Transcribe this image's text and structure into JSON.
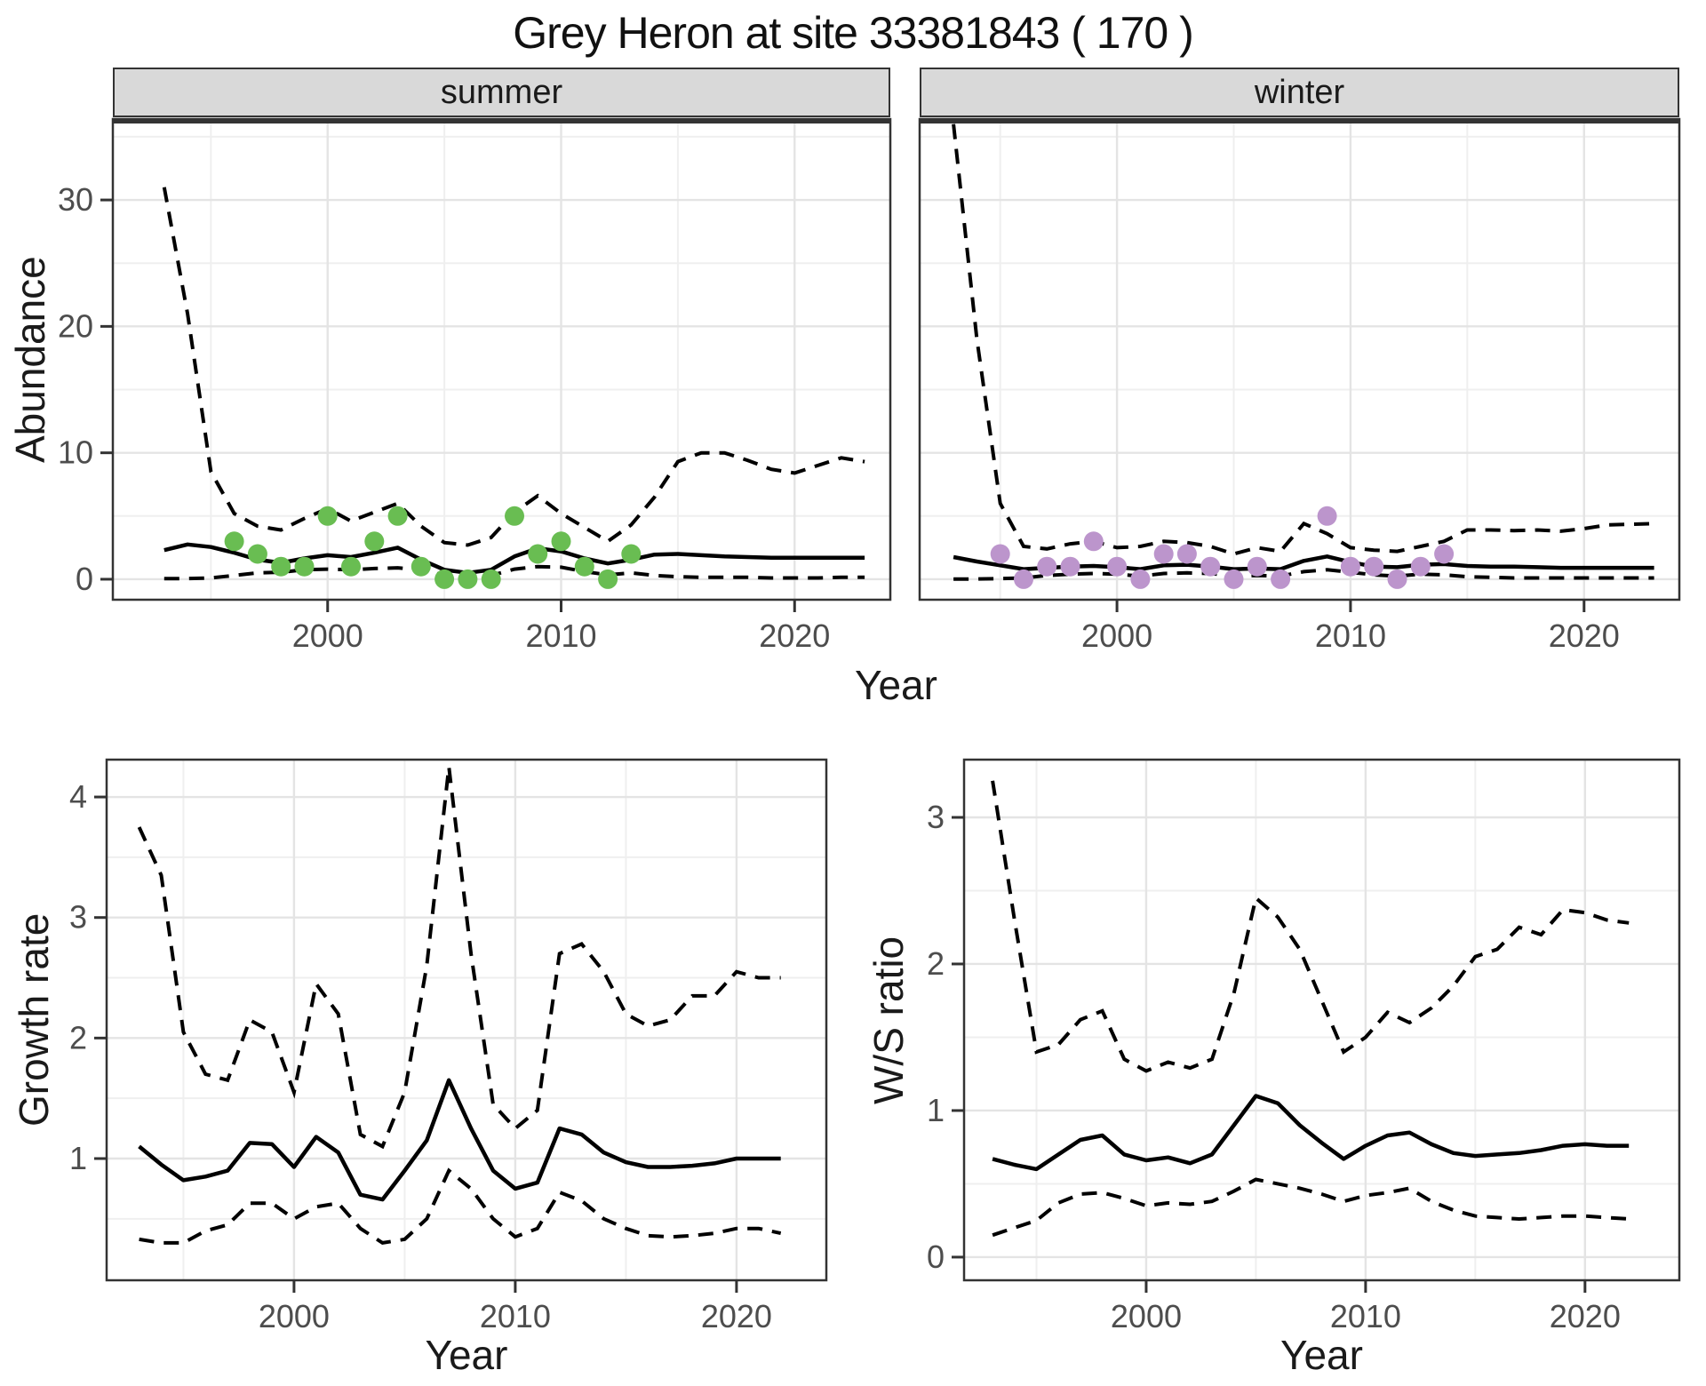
{
  "title": "Grey Heron at site 33381843 ( 170 )",
  "top_row": {
    "facets": [
      {
        "label": "summer"
      },
      {
        "label": "winter"
      }
    ],
    "ylabel": "Abundance",
    "xlabel": "Year"
  },
  "bottom_row": {
    "left_ylabel": "Growth rate",
    "right_ylabel": "W/S ratio",
    "xlabel": "Year"
  },
  "colors": {
    "summer_point": "#69bd52",
    "winter_point": "#bc95cc",
    "line": "#000000",
    "grid_major": "#e4e4e4",
    "grid_minor": "#efefef",
    "panel_border": "#333333",
    "strip_bg": "#d9d9d9",
    "tick_label": "#4d4d4d"
  },
  "chart_data": [
    {
      "id": "abundance_summer",
      "type": "line+scatter",
      "facet": "summer",
      "ylabel": "Abundance",
      "xlabel": "Year",
      "xlim": [
        1990.8,
        2024.1
      ],
      "ylim": [
        -1.62,
        36.4
      ],
      "x_ticks": [
        2000,
        2010,
        2020
      ],
      "x_tick_labels": [
        "2000",
        "2010",
        "2020"
      ],
      "x_minor": [
        1995,
        2005,
        2015
      ],
      "y_ticks": [
        0,
        10,
        20,
        30
      ],
      "y_tick_labels": [
        "0",
        "10",
        "20",
        "30"
      ],
      "y_minor": [
        5,
        15,
        25,
        35
      ],
      "show_y_labels": true,
      "lines": {
        "x": [
          1993,
          1994,
          1995,
          1996,
          1997,
          1998,
          1999,
          2000,
          2001,
          2002,
          2003,
          2004,
          2005,
          2006,
          2007,
          2008,
          2009,
          2010,
          2011,
          2012,
          2013,
          2014,
          2015,
          2016,
          2017,
          2018,
          2019,
          2020,
          2021,
          2022,
          2023
        ],
        "median": [
          2.3,
          2.75,
          2.55,
          2.1,
          1.55,
          1.3,
          1.65,
          1.9,
          1.75,
          2.1,
          2.5,
          1.55,
          0.75,
          0.5,
          0.75,
          1.8,
          2.45,
          2.2,
          1.65,
          1.25,
          1.55,
          1.95,
          2.0,
          1.9,
          1.8,
          1.75,
          1.7,
          1.7,
          1.7,
          1.7,
          1.7
        ],
        "upper": [
          31,
          21,
          8.5,
          5.2,
          4.2,
          3.9,
          4.8,
          5.6,
          4.6,
          5.3,
          6.0,
          4.2,
          2.9,
          2.7,
          3.3,
          5.3,
          6.6,
          5.2,
          4.1,
          3.0,
          4.3,
          6.5,
          9.3,
          10.0,
          10.0,
          9.4,
          8.7,
          8.4,
          9.0,
          9.6,
          9.3
        ],
        "lower": [
          0.05,
          0.05,
          0.1,
          0.3,
          0.5,
          0.55,
          0.75,
          0.8,
          0.75,
          0.85,
          0.9,
          0.75,
          0.3,
          0.2,
          0.3,
          0.8,
          1.0,
          0.95,
          0.6,
          0.35,
          0.5,
          0.3,
          0.2,
          0.15,
          0.15,
          0.15,
          0.1,
          0.1,
          0.1,
          0.15,
          0.15
        ]
      },
      "points": {
        "x": [
          1996,
          1997,
          1998,
          1999,
          2000,
          2001,
          2002,
          2003,
          2004,
          2005,
          2006,
          2007,
          2008,
          2009,
          2010,
          2011,
          2012,
          2013
        ],
        "y": [
          3,
          2,
          1,
          1,
          5,
          1,
          3,
          5,
          1,
          0,
          0,
          0,
          5,
          2,
          3,
          1,
          0,
          2
        ],
        "color": "#69bd52"
      }
    },
    {
      "id": "abundance_winter",
      "type": "line+scatter",
      "facet": "winter",
      "ylabel": "Abundance",
      "xlabel": "Year",
      "xlim": [
        1991.55,
        2024.08
      ],
      "ylim": [
        -1.62,
        36.4
      ],
      "x_ticks": [
        2000,
        2010,
        2020
      ],
      "x_tick_labels": [
        "2000",
        "2010",
        "2020"
      ],
      "x_minor": [
        1995,
        2005,
        2015
      ],
      "y_ticks": [
        0,
        10,
        20,
        30
      ],
      "y_tick_labels": [
        "0",
        "10",
        "20",
        "30"
      ],
      "y_minor": [
        5,
        15,
        25,
        35
      ],
      "show_y_labels": false,
      "lines": {
        "x": [
          1993,
          1994,
          1995,
          1996,
          1997,
          1998,
          1999,
          2000,
          2001,
          2002,
          2003,
          2004,
          2005,
          2006,
          2007,
          2008,
          2009,
          2010,
          2011,
          2012,
          2013,
          2014,
          2015,
          2016,
          2017,
          2018,
          2019,
          2020,
          2021,
          2022,
          2023
        ],
        "median": [
          1.75,
          1.4,
          1.1,
          0.8,
          0.9,
          1.0,
          1.05,
          0.95,
          0.8,
          1.1,
          1.15,
          1.0,
          0.8,
          0.85,
          0.8,
          1.45,
          1.8,
          1.35,
          1.0,
          0.95,
          1.15,
          1.2,
          1.05,
          1.0,
          1.0,
          0.95,
          0.9,
          0.9,
          0.9,
          0.9,
          0.9
        ],
        "upper": [
          36,
          19,
          6,
          2.6,
          2.4,
          2.8,
          3.0,
          2.5,
          2.6,
          3.0,
          2.9,
          2.6,
          2.0,
          2.5,
          2.2,
          4.4,
          3.6,
          2.5,
          2.3,
          2.2,
          2.6,
          3.0,
          3.9,
          3.9,
          3.85,
          3.9,
          3.8,
          4.0,
          4.3,
          4.35,
          4.4
        ],
        "lower": [
          0.02,
          0.02,
          0.05,
          0.1,
          0.3,
          0.4,
          0.45,
          0.4,
          0.25,
          0.45,
          0.5,
          0.45,
          0.25,
          0.3,
          0.25,
          0.6,
          0.75,
          0.55,
          0.35,
          0.25,
          0.4,
          0.35,
          0.2,
          0.15,
          0.1,
          0.1,
          0.1,
          0.1,
          0.1,
          0.1,
          0.1
        ]
      },
      "points": {
        "x": [
          1995,
          1996,
          1997,
          1998,
          1999,
          2000,
          2001,
          2002,
          2003,
          2004,
          2005,
          2006,
          2007,
          2009,
          2010,
          2011,
          2012,
          2013,
          2014
        ],
        "y": [
          2,
          0,
          1,
          1,
          3,
          1,
          0,
          2,
          2,
          1,
          0,
          1,
          0,
          5,
          1,
          1,
          0,
          1,
          2
        ],
        "color": "#bc95cc"
      }
    },
    {
      "id": "growth",
      "type": "line",
      "ylabel": "Growth rate",
      "xlabel": "Year",
      "xlim": [
        1991.53,
        2024.06
      ],
      "ylim": [
        -0.01,
        4.31
      ],
      "x_ticks": [
        2000,
        2010,
        2020
      ],
      "x_tick_labels": [
        "2000",
        "2010",
        "2020"
      ],
      "x_minor": [
        1995,
        2005,
        2015
      ],
      "y_ticks": [
        1,
        2,
        3,
        4
      ],
      "y_tick_labels": [
        "1",
        "2",
        "3",
        "4"
      ],
      "y_minor": [
        0.5,
        1.5,
        2.5,
        3.5
      ],
      "show_y_labels": true,
      "lines": {
        "x": [
          1993,
          1994,
          1995,
          1996,
          1997,
          1998,
          1999,
          2000,
          2001,
          2002,
          2003,
          2004,
          2005,
          2006,
          2007,
          2008,
          2009,
          2010,
          2011,
          2012,
          2013,
          2014,
          2015,
          2016,
          2017,
          2018,
          2019,
          2020,
          2021,
          2022
        ],
        "median": [
          1.1,
          0.95,
          0.82,
          0.85,
          0.9,
          1.13,
          1.12,
          0.93,
          1.18,
          1.05,
          0.7,
          0.66,
          0.9,
          1.15,
          1.65,
          1.25,
          0.9,
          0.75,
          0.8,
          1.25,
          1.2,
          1.05,
          0.97,
          0.93,
          0.93,
          0.94,
          0.96,
          1.0,
          1.0,
          1.0
        ],
        "upper": [
          3.75,
          3.35,
          2.05,
          1.7,
          1.65,
          2.15,
          2.05,
          1.55,
          2.45,
          2.2,
          1.2,
          1.1,
          1.55,
          2.6,
          4.25,
          2.7,
          1.45,
          1.25,
          1.4,
          2.7,
          2.78,
          2.55,
          2.2,
          2.1,
          2.15,
          2.35,
          2.35,
          2.55,
          2.5,
          2.5
        ],
        "lower": [
          0.33,
          0.3,
          0.3,
          0.4,
          0.45,
          0.63,
          0.63,
          0.5,
          0.6,
          0.63,
          0.42,
          0.3,
          0.33,
          0.5,
          0.9,
          0.75,
          0.5,
          0.35,
          0.42,
          0.72,
          0.65,
          0.5,
          0.42,
          0.36,
          0.35,
          0.36,
          0.38,
          0.42,
          0.42,
          0.38
        ]
      }
    },
    {
      "id": "ws_ratio",
      "type": "line",
      "ylabel": "W/S ratio",
      "xlabel": "Year",
      "xlim": [
        1991.7,
        2024.3
      ],
      "ylim": [
        -0.158,
        3.394
      ],
      "x_ticks": [
        2000,
        2010,
        2020
      ],
      "x_tick_labels": [
        "2000",
        "2010",
        "2020"
      ],
      "x_minor": [
        1995,
        2005,
        2015
      ],
      "y_ticks": [
        0,
        1,
        2,
        3
      ],
      "y_tick_labels": [
        "0",
        "1",
        "2",
        "3"
      ],
      "y_minor": [
        0.5,
        1.5,
        2.5
      ],
      "show_y_labels": true,
      "lines": {
        "x": [
          1993,
          1994,
          1995,
          1996,
          1997,
          1998,
          1999,
          2000,
          2001,
          2002,
          2003,
          2004,
          2005,
          2006,
          2007,
          2008,
          2009,
          2010,
          2011,
          2012,
          2013,
          2014,
          2015,
          2016,
          2017,
          2018,
          2019,
          2020,
          2021,
          2022
        ],
        "median": [
          0.67,
          0.63,
          0.6,
          0.7,
          0.8,
          0.83,
          0.7,
          0.66,
          0.68,
          0.64,
          0.7,
          0.9,
          1.1,
          1.05,
          0.9,
          0.78,
          0.67,
          0.76,
          0.83,
          0.85,
          0.77,
          0.71,
          0.69,
          0.7,
          0.71,
          0.73,
          0.76,
          0.77,
          0.76,
          0.76
        ],
        "upper": [
          3.25,
          2.3,
          1.4,
          1.45,
          1.62,
          1.68,
          1.35,
          1.27,
          1.33,
          1.29,
          1.35,
          1.8,
          2.45,
          2.32,
          2.1,
          1.75,
          1.4,
          1.5,
          1.67,
          1.6,
          1.7,
          1.85,
          2.05,
          2.1,
          2.25,
          2.2,
          2.37,
          2.35,
          2.3,
          2.28
        ],
        "lower": [
          0.15,
          0.2,
          0.25,
          0.37,
          0.43,
          0.44,
          0.4,
          0.35,
          0.37,
          0.36,
          0.38,
          0.45,
          0.53,
          0.5,
          0.47,
          0.43,
          0.38,
          0.42,
          0.44,
          0.47,
          0.38,
          0.32,
          0.28,
          0.27,
          0.26,
          0.27,
          0.28,
          0.28,
          0.27,
          0.26
        ]
      }
    }
  ]
}
